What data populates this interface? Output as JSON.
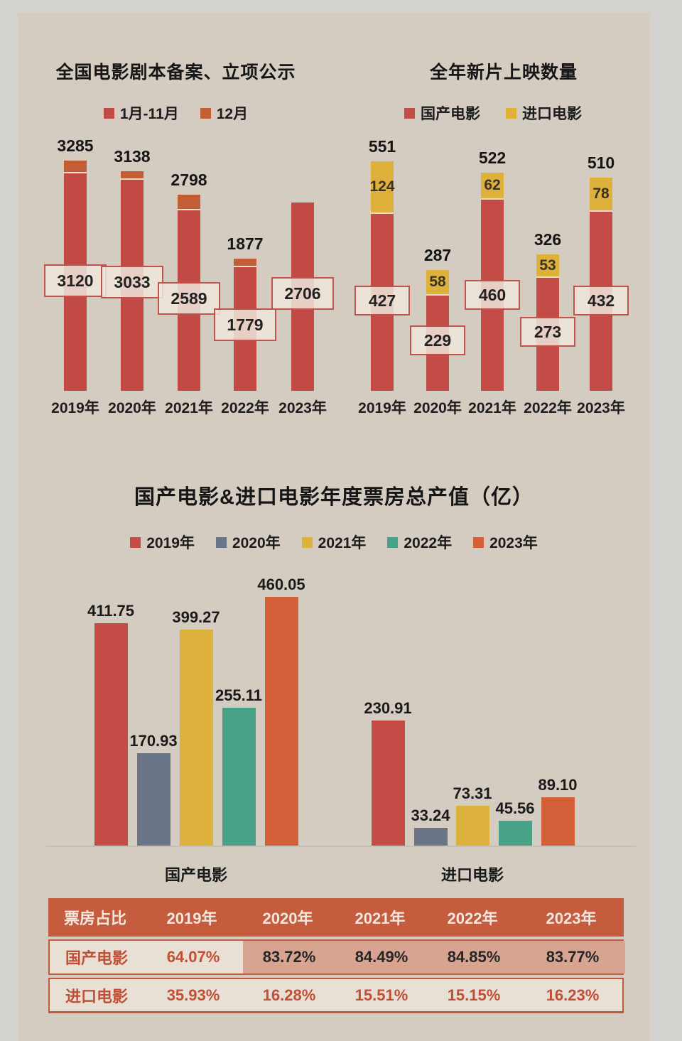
{
  "page": {
    "outer_bg": "#d3d2cf",
    "panel_bg": "#d4ccc1"
  },
  "filings_chart": {
    "title": "全国电影剧本备案、立项公示",
    "chart_data": {
      "type": "bar",
      "stacked": true,
      "categories": [
        "2019年",
        "2020年",
        "2021年",
        "2022年",
        "2023年"
      ],
      "series": [
        {
          "name": "1月-11月",
          "color": "#c14a44",
          "values": [
            "3120",
            "3033",
            "2589",
            "1779",
            "2706"
          ]
        },
        {
          "name": "12月",
          "color": "#c35d35",
          "values": [
            165,
            105,
            209,
            98,
            0
          ]
        }
      ],
      "totals": [
        "3285",
        "3138",
        "2798",
        "1877",
        ""
      ],
      "ylim": [
        0,
        3300
      ],
      "legend_position": "top",
      "grid": false
    }
  },
  "releases_chart": {
    "title": "全年新片上映数量",
    "chart_data": {
      "type": "bar",
      "stacked": true,
      "categories": [
        "2019年",
        "2020年",
        "2021年",
        "2022年",
        "2023年"
      ],
      "series": [
        {
          "name": "国产电影",
          "color": "#c34c47",
          "values": [
            "427",
            "229",
            "460",
            "273",
            "432"
          ]
        },
        {
          "name": "进口电影",
          "color": "#ddb13a",
          "values": [
            "124",
            "58",
            "62",
            "53",
            "78"
          ]
        }
      ],
      "totals": [
        "551",
        "287",
        "522",
        "326",
        "510"
      ],
      "ylim": [
        0,
        560
      ],
      "legend_position": "top",
      "grid": false
    }
  },
  "boxoffice_chart": {
    "title": "国产电影&进口电影年度票房总产值（亿）",
    "chart_data": {
      "type": "bar",
      "grouped": true,
      "groups": [
        "国产电影",
        "进口电影"
      ],
      "series": [
        {
          "name": "2019年",
          "color": "#c34c47",
          "values": [
            "411.75",
            "230.91"
          ]
        },
        {
          "name": "2020年",
          "color": "#6b7589",
          "values": [
            "170.93",
            "33.24"
          ]
        },
        {
          "name": "2021年",
          "color": "#dcb23c",
          "values": [
            "399.27",
            "73.31"
          ]
        },
        {
          "name": "2022年",
          "color": "#47a287",
          "values": [
            "255.11",
            "45.56"
          ]
        },
        {
          "name": "2023年",
          "color": "#d2613a",
          "values": [
            "460.05",
            "89.10"
          ]
        }
      ],
      "ylim": [
        0,
        480
      ],
      "legend_position": "top",
      "grid": false
    }
  },
  "share_table": {
    "header": [
      "票房占比",
      "2019年",
      "2020年",
      "2021年",
      "2022年",
      "2023年"
    ],
    "rows": [
      {
        "label": "国产电影",
        "values": [
          "64.07%",
          "83.72%",
          "84.49%",
          "84.85%",
          "83.77%"
        ],
        "highlight_from": 1
      },
      {
        "label": "进口电影",
        "values": [
          "35.93%",
          "16.28%",
          "15.51%",
          "15.15%",
          "16.23%"
        ],
        "highlight_from": null
      }
    ],
    "colors": {
      "header_bg": "#c65c3e",
      "header_text": "#f3e8e0",
      "row_bg": "#e8e0d5",
      "highlight_bg": "#d8a492",
      "accent_text": "#c14f36",
      "dark_text": "#262626",
      "border": "#c05a3c"
    }
  }
}
